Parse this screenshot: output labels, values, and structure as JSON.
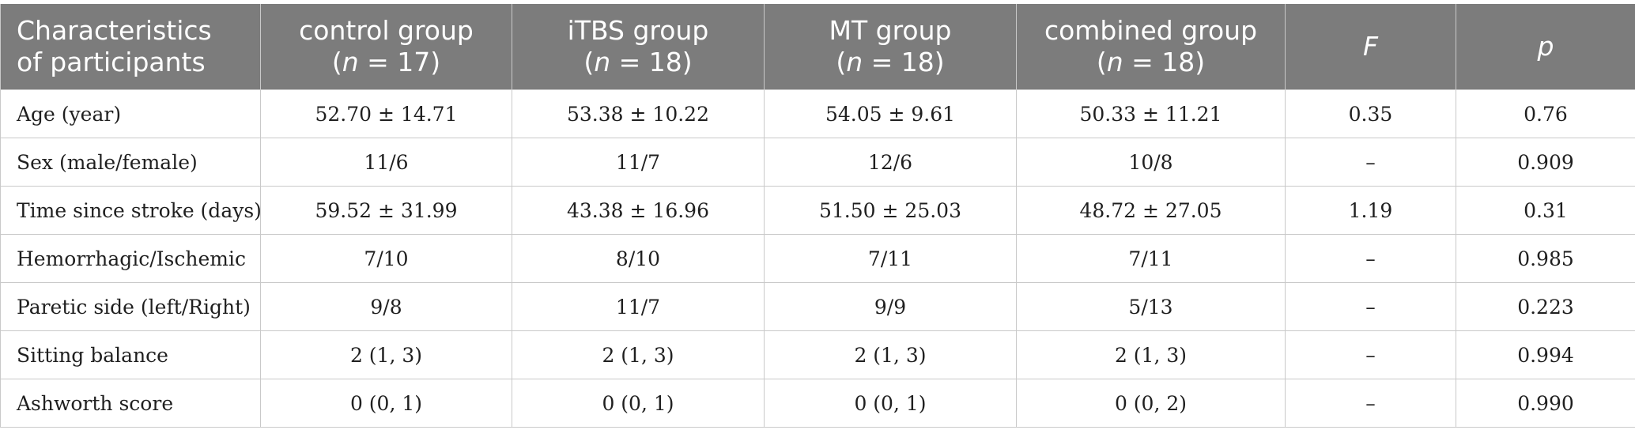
{
  "table": {
    "headers": [
      {
        "line1": "Characteristics",
        "line2": "of participants"
      },
      {
        "line1": "control group",
        "n_label": "n",
        "n_rest": " = 17"
      },
      {
        "line1": "iTBS group",
        "n_label": "n",
        "n_rest": " = 18"
      },
      {
        "line1": "MT group",
        "n_label": "n",
        "n_rest": " = 18"
      },
      {
        "line1": "combined group",
        "n_label": "n",
        "n_rest": " = 18"
      },
      {
        "line1": "F"
      },
      {
        "line1": "p"
      }
    ],
    "rows": [
      [
        "Age (year)",
        "52.70 ± 14.71",
        "53.38 ± 10.22",
        "54.05 ± 9.61",
        "50.33 ± 11.21",
        "0.35",
        "0.76"
      ],
      [
        "Sex (male/female)",
        "11/6",
        "11/7",
        "12/6",
        "10/8",
        "–",
        "0.909"
      ],
      [
        "Time since stroke (days)",
        "59.52 ± 31.99",
        "43.38 ± 16.96",
        "51.50 ± 25.03",
        "48.72 ± 27.05",
        "1.19",
        "0.31"
      ],
      [
        "Hemorrhagic/Ischemic",
        "7/10",
        "8/10",
        "7/11",
        "7/11",
        "–",
        "0.985"
      ],
      [
        "Paretic side (left/Right)",
        "9/8",
        "11/7",
        "9/9",
        "5/13",
        "–",
        "0.223"
      ],
      [
        "Sitting balance",
        "2 (1, 3)",
        "2 (1, 3)",
        "2 (1, 3)",
        "2 (1, 3)",
        "–",
        "0.994"
      ],
      [
        "Ashworth score",
        "0 (0, 1)",
        "0 (0, 1)",
        "0 (0, 1)",
        "0 (0, 2)",
        "–",
        "0.990"
      ]
    ]
  }
}
